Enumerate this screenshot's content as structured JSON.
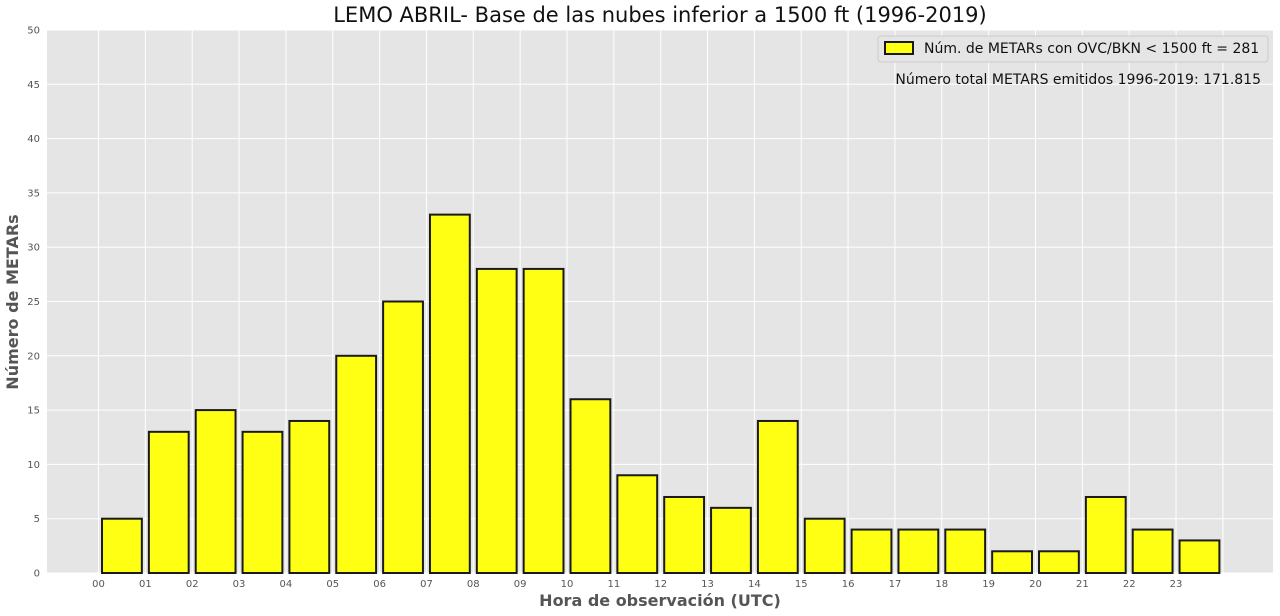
{
  "chart_data": {
    "type": "bar",
    "title": "LEMO ABRIL- Base de las nubes inferior a 1500 ft (1996-2019)",
    "xlabel": "Hora de observación (UTC)",
    "ylabel": "Número de METARs",
    "categories": [
      "00",
      "01",
      "02",
      "03",
      "04",
      "05",
      "06",
      "07",
      "08",
      "09",
      "10",
      "11",
      "12",
      "13",
      "14",
      "15",
      "16",
      "17",
      "18",
      "19",
      "20",
      "21",
      "22",
      "23"
    ],
    "values": [
      5,
      13,
      15,
      13,
      14,
      20,
      25,
      33,
      28,
      28,
      16,
      9,
      7,
      6,
      14,
      5,
      4,
      4,
      4,
      2,
      2,
      7,
      4,
      3
    ],
    "ylim": [
      0,
      50
    ],
    "yticks": [
      "0",
      "5",
      "10",
      "15",
      "20",
      "25",
      "30",
      "35",
      "40",
      "45",
      "50"
    ],
    "grid": true,
    "legend": {
      "position": "top-right",
      "label": "Núm. de METARs con OVC/BKN < 1500 ft = 281"
    },
    "annotation": "Número total METARS emitidos 1996-2019: 171.815",
    "colors": {
      "bar_fill": "#ffff14",
      "bar_edge": "#1a1a1a",
      "plot_background": "#e5e5e5",
      "grid": "#ffffff"
    }
  }
}
